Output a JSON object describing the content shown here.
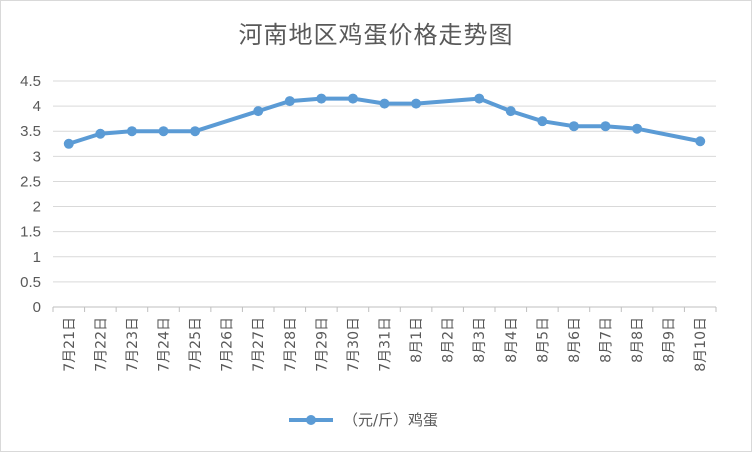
{
  "chart_data": {
    "type": "line",
    "title": "河南地区鸡蛋价格走势图",
    "xlabel": "",
    "ylabel": "",
    "ylim": [
      0,
      4.5
    ],
    "yticks": [
      "0",
      "0.5",
      "1",
      "1.5",
      "2",
      "2.5",
      "3",
      "3.5",
      "4",
      "4.5"
    ],
    "grid": "horizontal",
    "legend_position": "bottom",
    "categories": [
      "7月21日",
      "7月22日",
      "7月23日",
      "7月24日",
      "7月25日",
      "7月26日",
      "7月27日",
      "7月28日",
      "7月29日",
      "7月30日",
      "7月31日",
      "8月1日",
      "8月2日",
      "8月3日",
      "8月4日",
      "8月5日",
      "8月6日",
      "8月7日",
      "8月8日",
      "8月9日",
      "8月10日"
    ],
    "series": [
      {
        "name": "（元/斤）鸡蛋",
        "color": "#5b9bd5",
        "values": [
          3.25,
          3.45,
          3.5,
          3.5,
          3.5,
          null,
          3.9,
          4.1,
          4.15,
          4.15,
          4.05,
          4.05,
          null,
          4.15,
          3.9,
          3.7,
          3.6,
          3.6,
          3.55,
          null,
          3.3
        ]
      }
    ]
  }
}
